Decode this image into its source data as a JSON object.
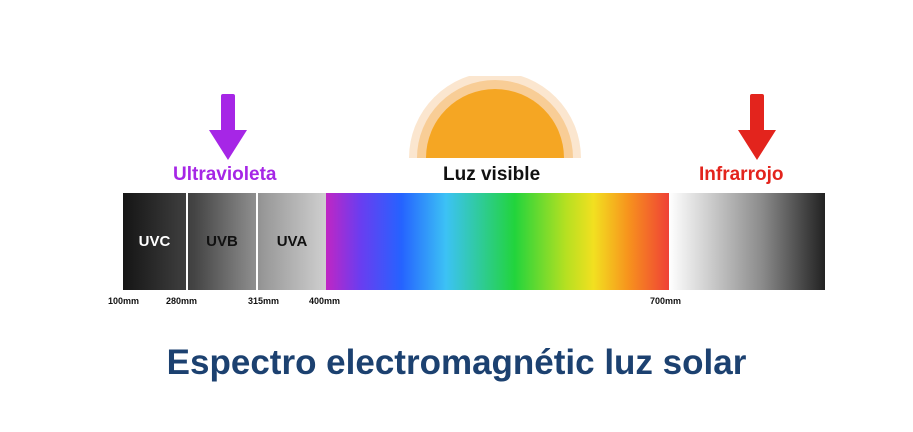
{
  "colors": {
    "ultraviolet": "#a626e6",
    "infrared": "#e3241d",
    "sun": "#f5a623",
    "title": "#1c4170"
  },
  "icons": {
    "uv_arrow": "down-arrow-icon",
    "ir_arrow": "down-arrow-icon",
    "sun": "sun-half-icon"
  },
  "regions": {
    "ultraviolet": "Ultravioleta",
    "visible": "Luz visible",
    "infrared": "Infrarrojo"
  },
  "bands": [
    "UVC",
    "UVB",
    "UVA"
  ],
  "ticks": [
    "100mm",
    "280mm",
    "315mm",
    "400mm",
    "700mm"
  ],
  "title": "Espectro electromagnétic luz solar"
}
